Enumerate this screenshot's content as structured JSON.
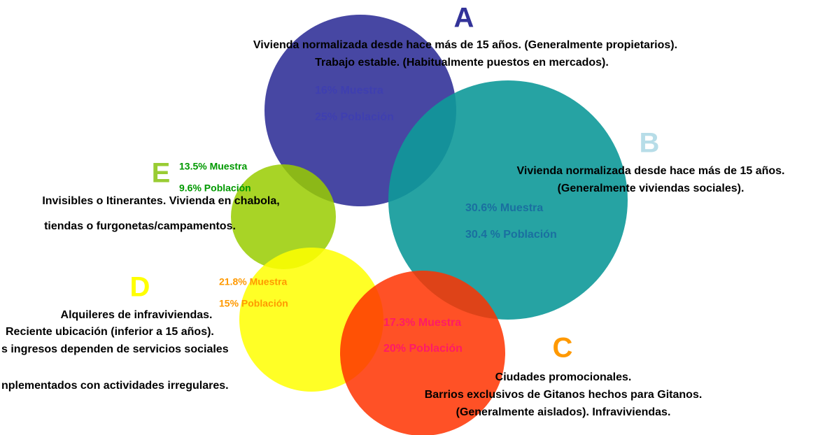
{
  "groups": [
    {
      "letter": "A",
      "lines": [
        "Vivienda normalizada desde hace más de 15 años. (Generalmente propietarios).",
        "Trabajo estable. (Habitualmente puestos en mercados)."
      ],
      "muestra": "16% Muestra",
      "poblacion": "25% Población"
    },
    {
      "letter": "B",
      "lines": [
        "Vivienda normalizada desde hace más de 15 años.",
        "(Generalmente viviendas sociales)."
      ],
      "muestra": "30.6% Muestra",
      "poblacion": "30.4 % Población"
    },
    {
      "letter": "C",
      "lines": [
        "Ciudades promocionales.",
        "Barrios exclusivos de Gitanos hechos para Gitanos.",
        "(Generalmente aislados). Infraviviendas."
      ],
      "muestra": "17.3% Muestra",
      "poblacion": "20% Población"
    },
    {
      "letter": "D",
      "lines": [
        "Alquileres de infraviviendas.",
        "Reciente ubicación (inferior a 15 años).",
        "s ingresos dependen de servicios sociales",
        "nplementados con actividades irregulares."
      ],
      "muestra": "21.8% Muestra",
      "poblacion": "15% Población"
    },
    {
      "letter": "E",
      "lines": [
        "Invisibles o Itinerantes.  Vivienda en chabola,",
        "tiendas o furgonetas/campamentos."
      ],
      "muestra": "13.5% Muestra",
      "poblacion": "9.6% Población"
    }
  ]
}
